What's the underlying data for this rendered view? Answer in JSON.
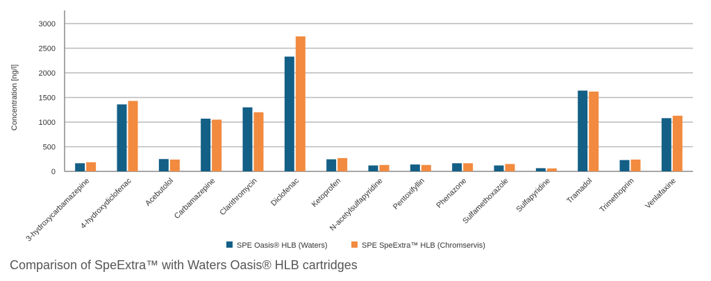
{
  "caption": "Comparison of SpeExtra™ with Waters Oasis® HLB cartridges",
  "chart_data": {
    "type": "bar",
    "title": "",
    "xlabel": "",
    "ylabel": "Concentration [ng/l]",
    "ylim": [
      0,
      3000
    ],
    "yticks": [
      0,
      500,
      1000,
      1500,
      2000,
      2500,
      3000
    ],
    "grid": true,
    "legend_position": "bottom",
    "categories": [
      "3-hydroxycarbamazepine",
      "4-hydroxydiclofenac",
      "Acebutolol",
      "Carbamazepine",
      "Clarithromycin",
      "Diclofenac",
      "Ketoprofen",
      "N-acetylsulfapyridine",
      "Pentoxifyllin",
      "Phenazone",
      "Sulfamethoxazole",
      "Sulfapyridine",
      "Tramadol",
      "Trimethoprim",
      "Venlafaxine"
    ],
    "series": [
      {
        "name": "SPE Oasis® HLB (Waters)",
        "color": "#135f86",
        "values": [
          165,
          1360,
          250,
          1070,
          1300,
          2330,
          245,
          120,
          140,
          165,
          120,
          65,
          1640,
          230,
          1080
        ]
      },
      {
        "name": "SPE SpeExtra™ HLB (Chromservis)",
        "color": "#f28a3f",
        "values": [
          185,
          1430,
          240,
          1050,
          1200,
          2740,
          270,
          130,
          130,
          165,
          150,
          60,
          1620,
          240,
          1130
        ]
      }
    ]
  }
}
